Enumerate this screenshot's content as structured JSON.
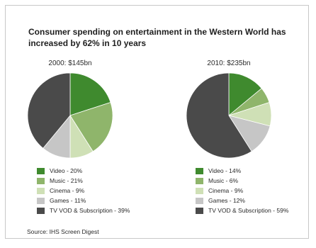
{
  "title": "Consumer spending on entertainment in the Western World has increased by 62% in 10 years",
  "source": "Source: IHS Screen Digest",
  "colors": {
    "Video": "#3f8a2e",
    "Music": "#8fb56b",
    "Cinema": "#cfe0b6",
    "Games": "#c6c6c6",
    "TV VOD & Subscription": "#4a4a4a"
  },
  "chart_data": [
    {
      "type": "pie",
      "title": "2000: $145bn",
      "categories": [
        "Video",
        "Music",
        "Cinema",
        "Games",
        "TV VOD & Subscription"
      ],
      "values": [
        20,
        21,
        9,
        11,
        39
      ],
      "legend_labels": [
        "Video - 20%",
        "Music - 21%",
        "Cinema - 9%",
        "Games - 11%",
        "TV VOD & Subscription - 39%"
      ],
      "legend": "bottom"
    },
    {
      "type": "pie",
      "title": "2010: $235bn",
      "categories": [
        "Video",
        "Music",
        "Cinema",
        "Games",
        "TV VOD & Subscription"
      ],
      "values": [
        14,
        6,
        9,
        12,
        59
      ],
      "legend_labels": [
        "Video - 14%",
        "Music - 6%",
        "Cinema - 9%",
        "Games - 12%",
        "TV VOD & Subscription - 59%"
      ],
      "legend": "bottom"
    }
  ]
}
